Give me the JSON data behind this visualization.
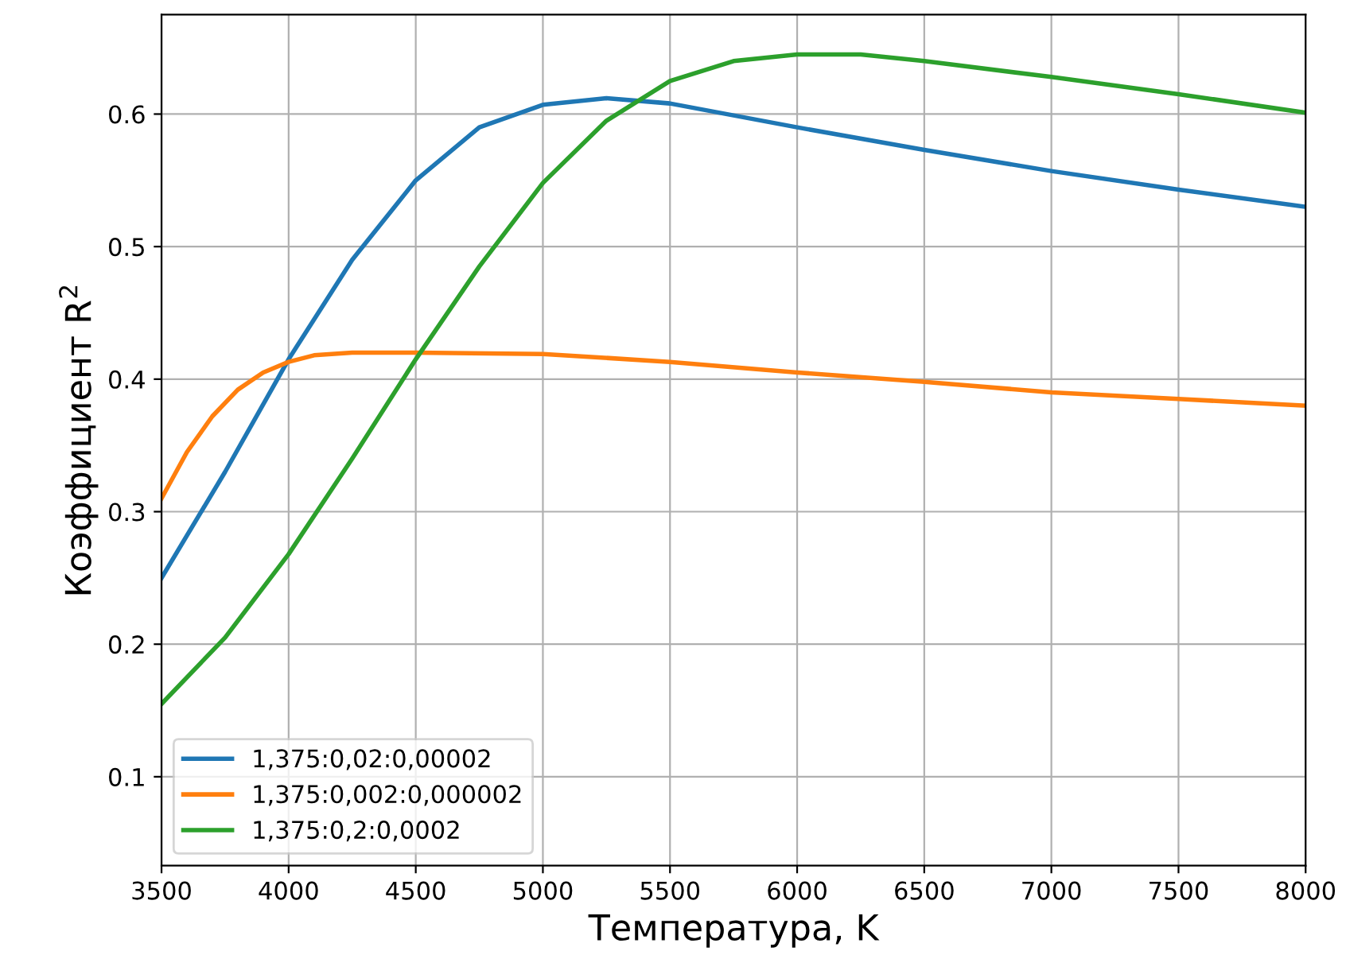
{
  "chart_data": {
    "type": "line",
    "xlabel": "Температура, K",
    "ylabel": "Коэффициент R$^{2}$",
    "xlim": [
      3500,
      8000
    ],
    "xticks": [
      3500,
      4000,
      4500,
      5000,
      5500,
      6000,
      6500,
      7000,
      7500,
      8000
    ],
    "ylim": [
      0.033,
      0.675
    ],
    "yticks": [
      0.1,
      0.2,
      0.3,
      0.4,
      0.5,
      0.6
    ],
    "grid": true,
    "legend": "bottom left",
    "line_style": "solid",
    "series": [
      {
        "name": "1,375:0,02:0,00002",
        "color": "#1f77b4",
        "x": [
          3500,
          3750,
          4000,
          4250,
          4500,
          4750,
          5000,
          5250,
          5500,
          6000,
          6500,
          7000,
          7500,
          8000
        ],
        "values": [
          0.25,
          0.33,
          0.415,
          0.49,
          0.55,
          0.59,
          0.607,
          0.612,
          0.608,
          0.59,
          0.573,
          0.557,
          0.543,
          0.53
        ]
      },
      {
        "name": "1,375:0,002:0,000002",
        "color": "#ff7f0e",
        "x": [
          3500,
          3600,
          3700,
          3800,
          3900,
          4000,
          4100,
          4250,
          4500,
          5000,
          5500,
          6000,
          6500,
          7000,
          7500,
          8000
        ],
        "values": [
          0.31,
          0.345,
          0.372,
          0.392,
          0.405,
          0.413,
          0.418,
          0.42,
          0.42,
          0.419,
          0.413,
          0.405,
          0.398,
          0.39,
          0.385,
          0.38
        ]
      },
      {
        "name": "1,375:0,2:0,0002",
        "color": "#2ca02c",
        "x": [
          3500,
          3750,
          4000,
          4250,
          4500,
          4750,
          5000,
          5250,
          5500,
          5750,
          6000,
          6250,
          6500,
          7000,
          7500,
          8000
        ],
        "values": [
          0.155,
          0.205,
          0.268,
          0.34,
          0.415,
          0.485,
          0.548,
          0.595,
          0.625,
          0.64,
          0.645,
          0.645,
          0.64,
          0.628,
          0.615,
          0.601
        ]
      }
    ]
  }
}
